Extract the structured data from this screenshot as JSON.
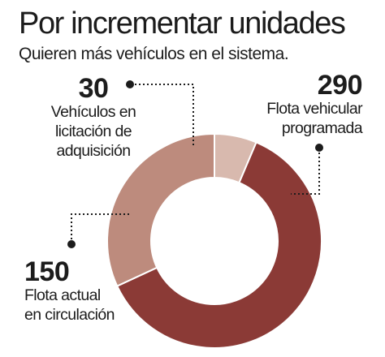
{
  "header": {
    "title": "Por incrementar unidades",
    "subtitle": "Quieren más vehículos en el sistema."
  },
  "chart_data": {
    "type": "pie",
    "style": "donut",
    "title": "Por incrementar unidades",
    "subtitle": "Quieren más vehículos en el sistema.",
    "slices": [
      {
        "value": 30,
        "label_lines": [
          "Vehículos en",
          "licitación de",
          "adquisición"
        ],
        "color": "#d8b9ae"
      },
      {
        "value": 290,
        "label_lines": [
          "Flota vehicular",
          "programada"
        ],
        "color": "#8b3a36"
      },
      {
        "value": 150,
        "label_lines": [
          "Flota actual",
          "en circulación"
        ],
        "color": "#bd8b7d"
      }
    ],
    "legend": "none"
  }
}
